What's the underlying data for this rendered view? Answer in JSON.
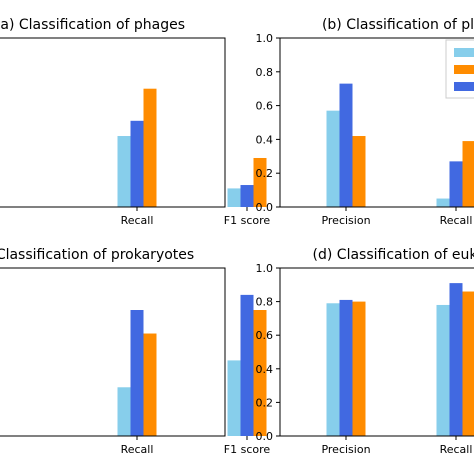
{
  "colors": {
    "series_light": "#87CEEB",
    "series_blue": "#4169E1",
    "series_orange": "#FF8C00",
    "axis": "#000000"
  },
  "chart_data": [
    {
      "id": "a",
      "type": "bar",
      "title": "(a) Classification of phages",
      "categories": [
        "",
        "Recall",
        "F1 score"
      ],
      "series": [
        {
          "values": [
            null,
            0.42,
            0.11
          ]
        },
        {
          "values": [
            null,
            0.51,
            0.13
          ]
        },
        {
          "values": [
            null,
            0.7,
            0.29
          ]
        }
      ],
      "ylim": [
        0,
        1.0
      ],
      "yticks_shown": false
    },
    {
      "id": "b",
      "type": "bar",
      "title": "(b) Classification of pl",
      "categories": [
        "Precision",
        "Recall",
        ""
      ],
      "series": [
        {
          "values": [
            0.57,
            0.05,
            null
          ]
        },
        {
          "values": [
            0.73,
            0.27,
            null
          ]
        },
        {
          "values": [
            0.42,
            0.39,
            null
          ]
        }
      ],
      "ylim": [
        0,
        1.0
      ],
      "yticks": [
        "0.0",
        "0.2",
        "0.4",
        "0.6",
        "0.8",
        "1.0"
      ],
      "legend": "top-right (cropped)"
    },
    {
      "id": "c",
      "type": "bar",
      "title": "Classification of prokaryotes",
      "categories": [
        "",
        "Recall",
        "F1 score"
      ],
      "series": [
        {
          "values": [
            null,
            0.29,
            0.45
          ]
        },
        {
          "values": [
            null,
            0.75,
            0.84
          ]
        },
        {
          "values": [
            null,
            0.61,
            0.75
          ]
        }
      ],
      "ylim": [
        0,
        1.0
      ],
      "yticks_shown": false
    },
    {
      "id": "d",
      "type": "bar",
      "title": "(d) Classification of euk",
      "categories": [
        "Precision",
        "Recall",
        ""
      ],
      "series": [
        {
          "values": [
            0.79,
            0.78,
            null
          ]
        },
        {
          "values": [
            0.81,
            0.91,
            null
          ]
        },
        {
          "values": [
            0.8,
            0.86,
            null
          ]
        }
      ],
      "ylim": [
        0,
        1.0
      ],
      "yticks": [
        "0.0",
        "0.2",
        "0.4",
        "0.6",
        "0.8",
        "1.0"
      ]
    }
  ]
}
